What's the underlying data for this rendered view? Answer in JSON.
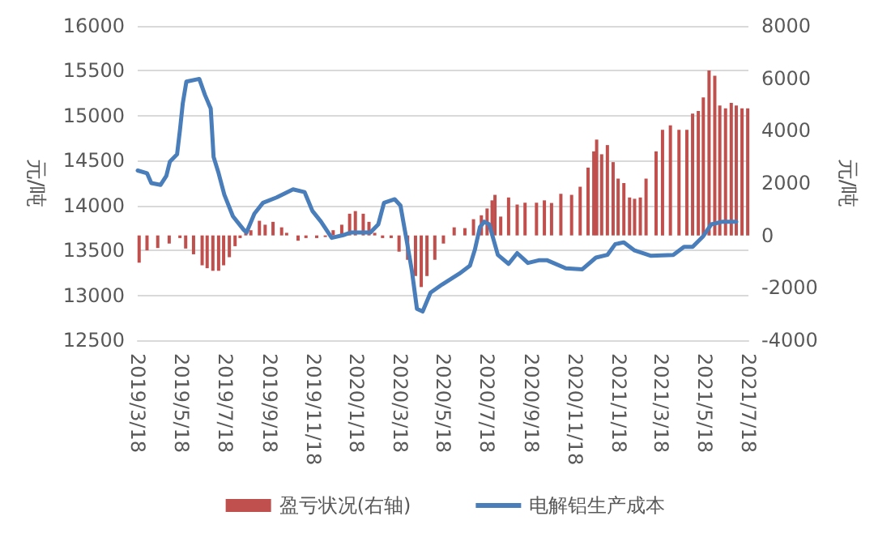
{
  "chart_data": {
    "type": "bar",
    "ylabel": "元/吨",
    "y2label": "元/吨",
    "xlim": [
      "2019-03-18",
      "2021-07-18"
    ],
    "xticks": [
      {
        "value": "2019-03-18",
        "label": "2019/3/18"
      },
      {
        "value": "2019-05-18",
        "label": "2019/5/18"
      },
      {
        "value": "2019-07-18",
        "label": "2019/7/18"
      },
      {
        "value": "2019-09-18",
        "label": "2019/9/18"
      },
      {
        "value": "2019-11-18",
        "label": "2019/11/18"
      },
      {
        "value": "2020-01-18",
        "label": "2020/1/18"
      },
      {
        "value": "2020-03-18",
        "label": "2020/3/18"
      },
      {
        "value": "2020-05-18",
        "label": "2020/5/18"
      },
      {
        "value": "2020-07-18",
        "label": "2020/7/18"
      },
      {
        "value": "2020-09-18",
        "label": "2020/9/18"
      },
      {
        "value": "2020-11-18",
        "label": "2020/11/18"
      },
      {
        "value": "2021-01-18",
        "label": "2021/1/18"
      },
      {
        "value": "2021-03-18",
        "label": "2021/3/18"
      },
      {
        "value": "2021-05-18",
        "label": "2021/5/18"
      },
      {
        "value": "2021-07-18",
        "label": "2021/7/18"
      }
    ],
    "ylim": [
      12500,
      16000
    ],
    "yticks": [
      12500,
      13000,
      13500,
      14000,
      14500,
      15000,
      15500,
      16000
    ],
    "y2lim": [
      -4000,
      8000
    ],
    "y2ticks": [
      -4000,
      -2000,
      0,
      2000,
      4000,
      6000,
      8000
    ],
    "grid": "y",
    "legend": "bottom",
    "series": [
      {
        "name": "盈亏状况(右轴)",
        "axis": "y2",
        "color": "#c0504d",
        "x": [
          "2019-03-20",
          "2019-03-31",
          "2019-04-15",
          "2019-05-01",
          "2019-05-16",
          "2019-05-24",
          "2019-06-04",
          "2019-06-16",
          "2019-06-23",
          "2019-07-01",
          "2019-07-09",
          "2019-07-16",
          "2019-07-24",
          "2019-08-01",
          "2019-08-08",
          "2019-08-16",
          "2019-08-23",
          "2019-09-04",
          "2019-09-12",
          "2019-09-23",
          "2019-10-05",
          "2019-10-12",
          "2019-10-28",
          "2019-11-08",
          "2019-11-23",
          "2019-12-05",
          "2019-12-16",
          "2019-12-28",
          "2020-01-08",
          "2020-01-16",
          "2020-01-27",
          "2020-02-04",
          "2020-02-12",
          "2020-02-23",
          "2020-03-06",
          "2020-03-17",
          "2020-03-29",
          "2020-04-09",
          "2020-04-17",
          "2020-04-25",
          "2020-05-06",
          "2020-05-18",
          "2020-06-02",
          "2020-06-17",
          "2020-06-29",
          "2020-07-10",
          "2020-07-18",
          "2020-07-25",
          "2020-07-29",
          "2020-08-06",
          "2020-08-17",
          "2020-08-29",
          "2020-09-09",
          "2020-09-25",
          "2020-10-06",
          "2020-10-16",
          "2020-10-29",
          "2020-11-13",
          "2020-11-25",
          "2020-12-06",
          "2020-12-14",
          "2020-12-18",
          "2020-12-25",
          "2021-01-02",
          "2021-01-10",
          "2021-01-17",
          "2021-01-25",
          "2021-02-02",
          "2021-02-09",
          "2021-02-17",
          "2021-02-25",
          "2021-03-11",
          "2021-03-20",
          "2021-03-31",
          "2021-04-12",
          "2021-04-23",
          "2021-05-01",
          "2021-05-09",
          "2021-05-16",
          "2021-05-24",
          "2021-06-01",
          "2021-06-08",
          "2021-06-16",
          "2021-06-24",
          "2021-07-01",
          "2021-07-09",
          "2021-07-17"
        ],
        "values": [
          -1040,
          -570,
          -480,
          -310,
          -100,
          -500,
          -720,
          -1140,
          -1250,
          -1350,
          -1350,
          -1140,
          -830,
          -410,
          -100,
          100,
          200,
          560,
          410,
          520,
          310,
          100,
          -200,
          -100,
          -100,
          -60,
          200,
          410,
          830,
          930,
          830,
          520,
          100,
          -100,
          -100,
          -620,
          -930,
          -1550,
          -1970,
          -1550,
          -930,
          -310,
          310,
          280,
          620,
          770,
          1030,
          1340,
          1550,
          720,
          1450,
          1180,
          1250,
          1250,
          1340,
          1240,
          1590,
          1550,
          1860,
          2590,
          3210,
          3660,
          3100,
          3450,
          2800,
          2170,
          2000,
          1450,
          1400,
          1450,
          2170,
          3210,
          4030,
          4200,
          4030,
          4030,
          4650,
          4750,
          5270,
          6300,
          6100,
          4960,
          4850,
          5060,
          4960,
          4850,
          4850
        ]
      },
      {
        "name": "电解铝生产成本",
        "type": "line",
        "color": "#4a7ebb",
        "x": [
          "2019-03-18",
          "2019-03-31",
          "2019-04-06",
          "2019-04-19",
          "2019-04-27",
          "2019-05-02",
          "2019-05-12",
          "2019-05-16",
          "2019-05-20",
          "2019-05-25",
          "2019-06-12",
          "2019-06-20",
          "2019-06-28",
          "2019-07-02",
          "2019-07-09",
          "2019-07-17",
          "2019-07-29",
          "2019-08-13",
          "2019-08-17",
          "2019-08-28",
          "2019-09-09",
          "2019-09-28",
          "2019-10-21",
          "2019-11-06",
          "2019-11-17",
          "2019-11-29",
          "2019-12-14",
          "2019-12-30",
          "2020-01-10",
          "2020-02-06",
          "2020-02-17",
          "2020-02-25",
          "2020-03-11",
          "2020-03-19",
          "2020-03-27",
          "2020-04-04",
          "2020-04-11",
          "2020-04-19",
          "2020-04-30",
          "2020-05-16",
          "2020-06-09",
          "2020-06-24",
          "2020-07-01",
          "2020-07-08",
          "2020-07-14",
          "2020-07-21",
          "2020-08-02",
          "2020-08-17",
          "2020-08-29",
          "2020-09-13",
          "2020-09-28",
          "2020-10-10",
          "2020-11-05",
          "2020-11-28",
          "2020-12-17",
          "2021-01-02",
          "2021-01-13",
          "2021-01-25",
          "2021-02-09",
          "2021-03-04",
          "2021-04-04",
          "2021-04-19",
          "2021-05-01",
          "2021-05-16",
          "2021-05-27",
          "2021-06-12",
          "2021-07-01"
        ],
        "values": [
          14390,
          14360,
          14250,
          14230,
          14330,
          14490,
          14570,
          14840,
          15140,
          15380,
          15410,
          15230,
          15080,
          14540,
          14360,
          14120,
          13880,
          13730,
          13700,
          13910,
          14030,
          14090,
          14180,
          14150,
          13940,
          13820,
          13640,
          13670,
          13700,
          13700,
          13790,
          14030,
          14070,
          14000,
          13640,
          13270,
          12850,
          12820,
          13030,
          13120,
          13240,
          13330,
          13510,
          13760,
          13820,
          13790,
          13450,
          13350,
          13470,
          13360,
          13390,
          13390,
          13300,
          13290,
          13420,
          13450,
          13570,
          13590,
          13500,
          13440,
          13450,
          13540,
          13540,
          13660,
          13790,
          13820,
          13820
        ]
      }
    ]
  }
}
